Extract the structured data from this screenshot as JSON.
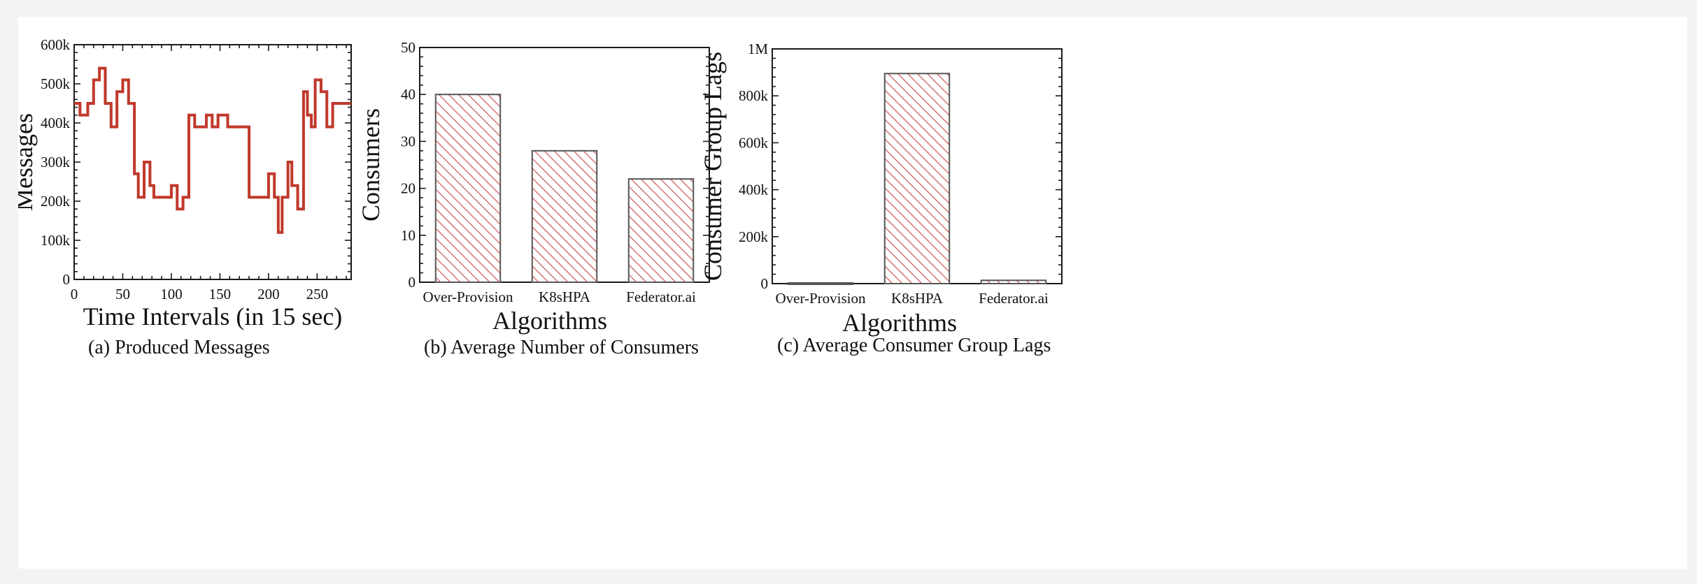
{
  "colors": {
    "series": "#c0392b",
    "hatch": "#d46a6a",
    "axis": "#1a1a1a"
  },
  "chart_data": [
    {
      "id": "a",
      "type": "line",
      "caption": "(a) Produced Messages",
      "xlabel": "Time Intervals (in 15 sec)",
      "ylabel": "Messages",
      "xlim": [
        0,
        285
      ],
      "ylim": [
        0,
        600000
      ],
      "xticks": [
        0,
        50,
        100,
        150,
        200,
        250
      ],
      "xtick_labels": [
        "0",
        "50",
        "100",
        "150",
        "200",
        "250"
      ],
      "yticks": [
        0,
        100000,
        200000,
        300000,
        400000,
        500000,
        600000
      ],
      "ytick_labels": [
        "0",
        "100k",
        "200k",
        "300k",
        "400k",
        "500k",
        "600k"
      ],
      "step": true,
      "series": [
        {
          "x": [
            0,
            6,
            14,
            20,
            26,
            32,
            38,
            44,
            50,
            56,
            62,
            66,
            72,
            78,
            82,
            88,
            100,
            106,
            112,
            118,
            124,
            136,
            142,
            148,
            152,
            158,
            166,
            180,
            200,
            206,
            210,
            214,
            220,
            224,
            230,
            236,
            240,
            244,
            248,
            254,
            260,
            266,
            272,
            278,
            285
          ],
          "y": [
            450000,
            420000,
            450000,
            510000,
            540000,
            450000,
            390000,
            480000,
            510000,
            450000,
            270000,
            210000,
            300000,
            240000,
            210000,
            210000,
            240000,
            180000,
            210000,
            420000,
            390000,
            420000,
            390000,
            420000,
            420000,
            390000,
            390000,
            210000,
            270000,
            210000,
            120000,
            210000,
            300000,
            240000,
            180000,
            480000,
            420000,
            390000,
            510000,
            480000,
            390000,
            450000,
            450000,
            450000,
            450000
          ]
        }
      ]
    },
    {
      "id": "b",
      "type": "bar",
      "caption": "(b) Average Number of Consumers",
      "xlabel": "Algorithms",
      "ylabel": "Consumers",
      "categories": [
        "Over-Provision",
        "K8sHPA",
        "Federator.ai"
      ],
      "values": [
        40,
        28,
        22
      ],
      "ylim": [
        0,
        50
      ],
      "yticks": [
        0,
        10,
        20,
        30,
        40,
        50
      ],
      "ytick_labels": [
        "0",
        "10",
        "20",
        "30",
        "40",
        "50"
      ]
    },
    {
      "id": "c",
      "type": "bar",
      "caption": "(c) Average Consumer Group Lags",
      "xlabel": "Algorithms",
      "ylabel": "Consumer Group Lags",
      "categories": [
        "Over-Provision",
        "K8sHPA",
        "Federator.ai"
      ],
      "values": [
        3000,
        895000,
        14000
      ],
      "ylim": [
        0,
        1000000
      ],
      "yticks": [
        0,
        200000,
        400000,
        600000,
        800000,
        1000000
      ],
      "ytick_labels": [
        "0",
        "200k",
        "400k",
        "600k",
        "800k",
        "1M"
      ]
    }
  ]
}
